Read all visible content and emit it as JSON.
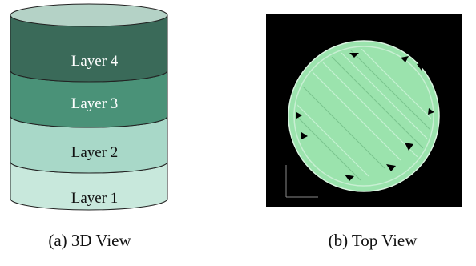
{
  "panel_a": {
    "layers": [
      {
        "label": "Layer 4",
        "color": "#3a6a59"
      },
      {
        "label": "Layer 3",
        "color": "#4a9278"
      },
      {
        "label": "Layer 2",
        "color": "#a8d8c8"
      },
      {
        "label": "Layer 1",
        "color": "#c8e8dc"
      }
    ],
    "top_cap_color": "#b4d2c6",
    "caption": "(a) 3D View"
  },
  "panel_b": {
    "background_color": "#000000",
    "disk_color": "#9be3ad",
    "caption": "(b) Top View"
  }
}
